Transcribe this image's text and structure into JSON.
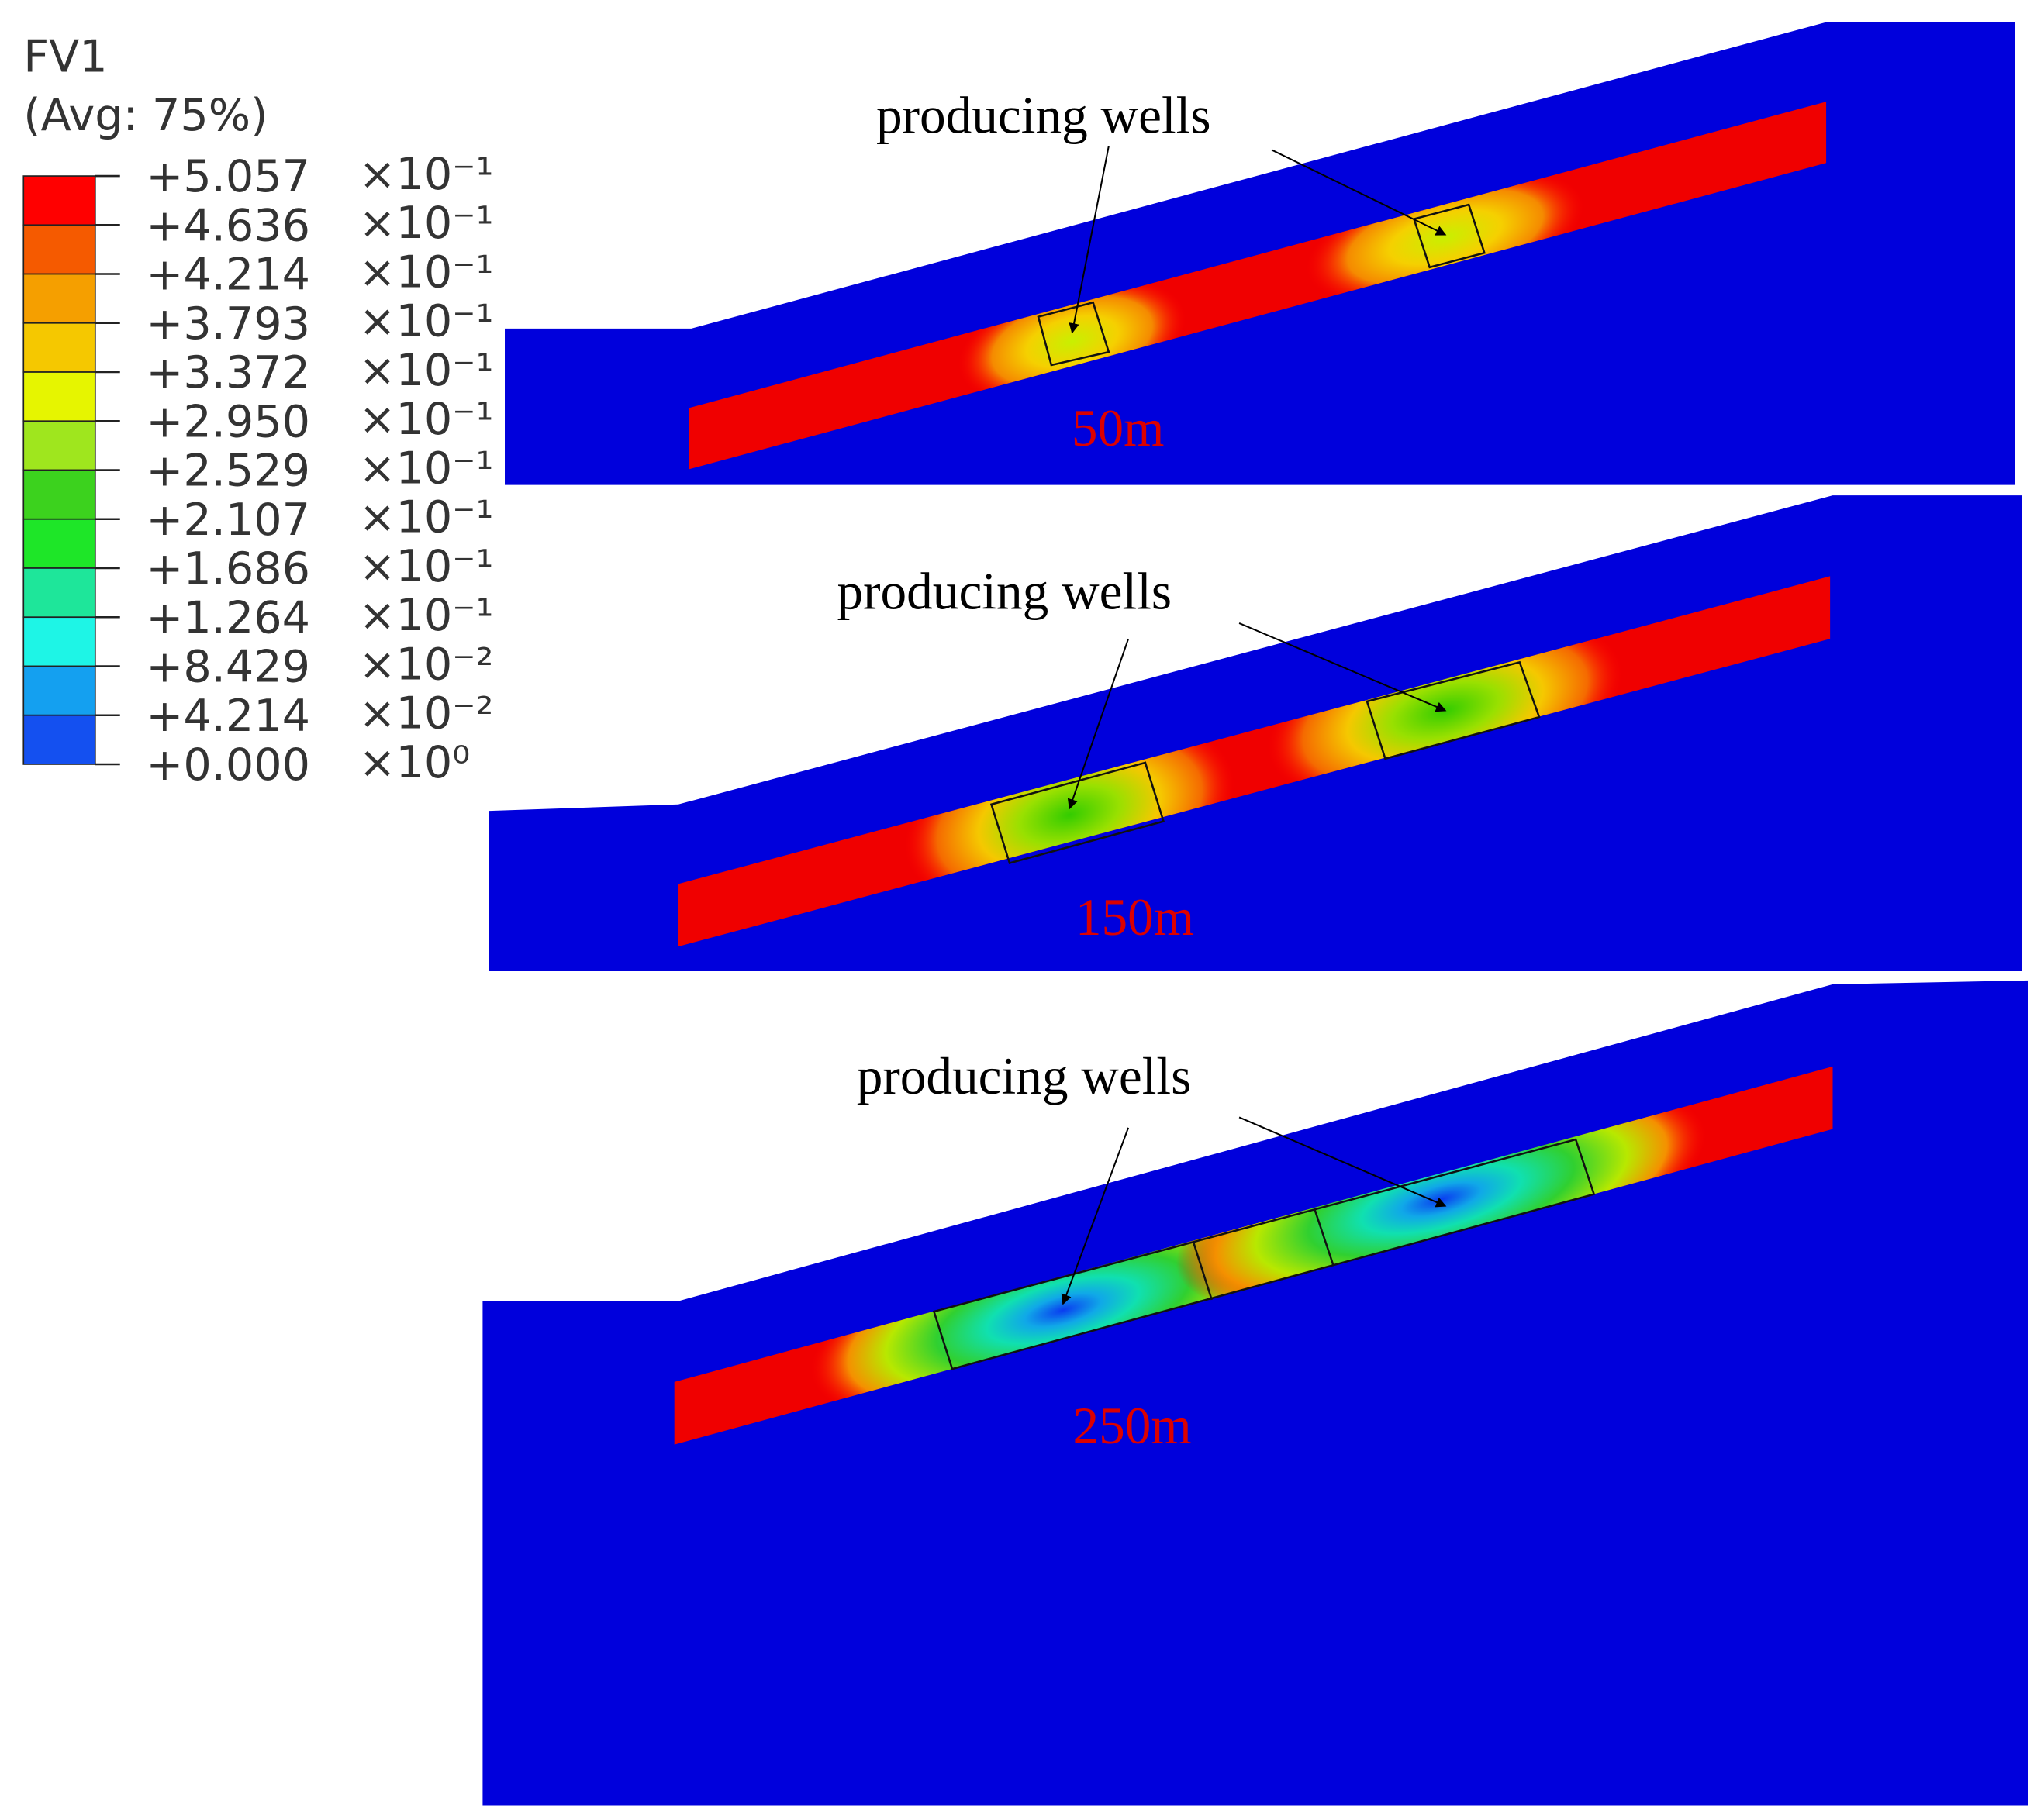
{
  "legend": {
    "title": "FV1",
    "subtitle": "(Avg: 75%)",
    "levels": [
      {
        "value": "+5.057",
        "exponent": "×10⁻¹"
      },
      {
        "value": "+4.636",
        "exponent": "×10⁻¹"
      },
      {
        "value": "+4.214",
        "exponent": "×10⁻¹"
      },
      {
        "value": "+3.793",
        "exponent": "×10⁻¹"
      },
      {
        "value": "+3.372",
        "exponent": "×10⁻¹"
      },
      {
        "value": "+2.950",
        "exponent": "×10⁻¹"
      },
      {
        "value": "+2.529",
        "exponent": "×10⁻¹"
      },
      {
        "value": "+2.107",
        "exponent": "×10⁻¹"
      },
      {
        "value": "+1.686",
        "exponent": "×10⁻¹"
      },
      {
        "value": "+1.264",
        "exponent": "×10⁻¹"
      },
      {
        "value": "+8.429",
        "exponent": "×10⁻²"
      },
      {
        "value": "+4.214",
        "exponent": "×10⁻²"
      },
      {
        "value": "+0.000",
        "exponent": "×10⁰"
      }
    ]
  },
  "panels": [
    {
      "annotation": "producing wells",
      "label": "50m"
    },
    {
      "annotation": "producing wells",
      "label": "150m"
    },
    {
      "annotation": "producing wells",
      "label": "250m"
    }
  ]
}
